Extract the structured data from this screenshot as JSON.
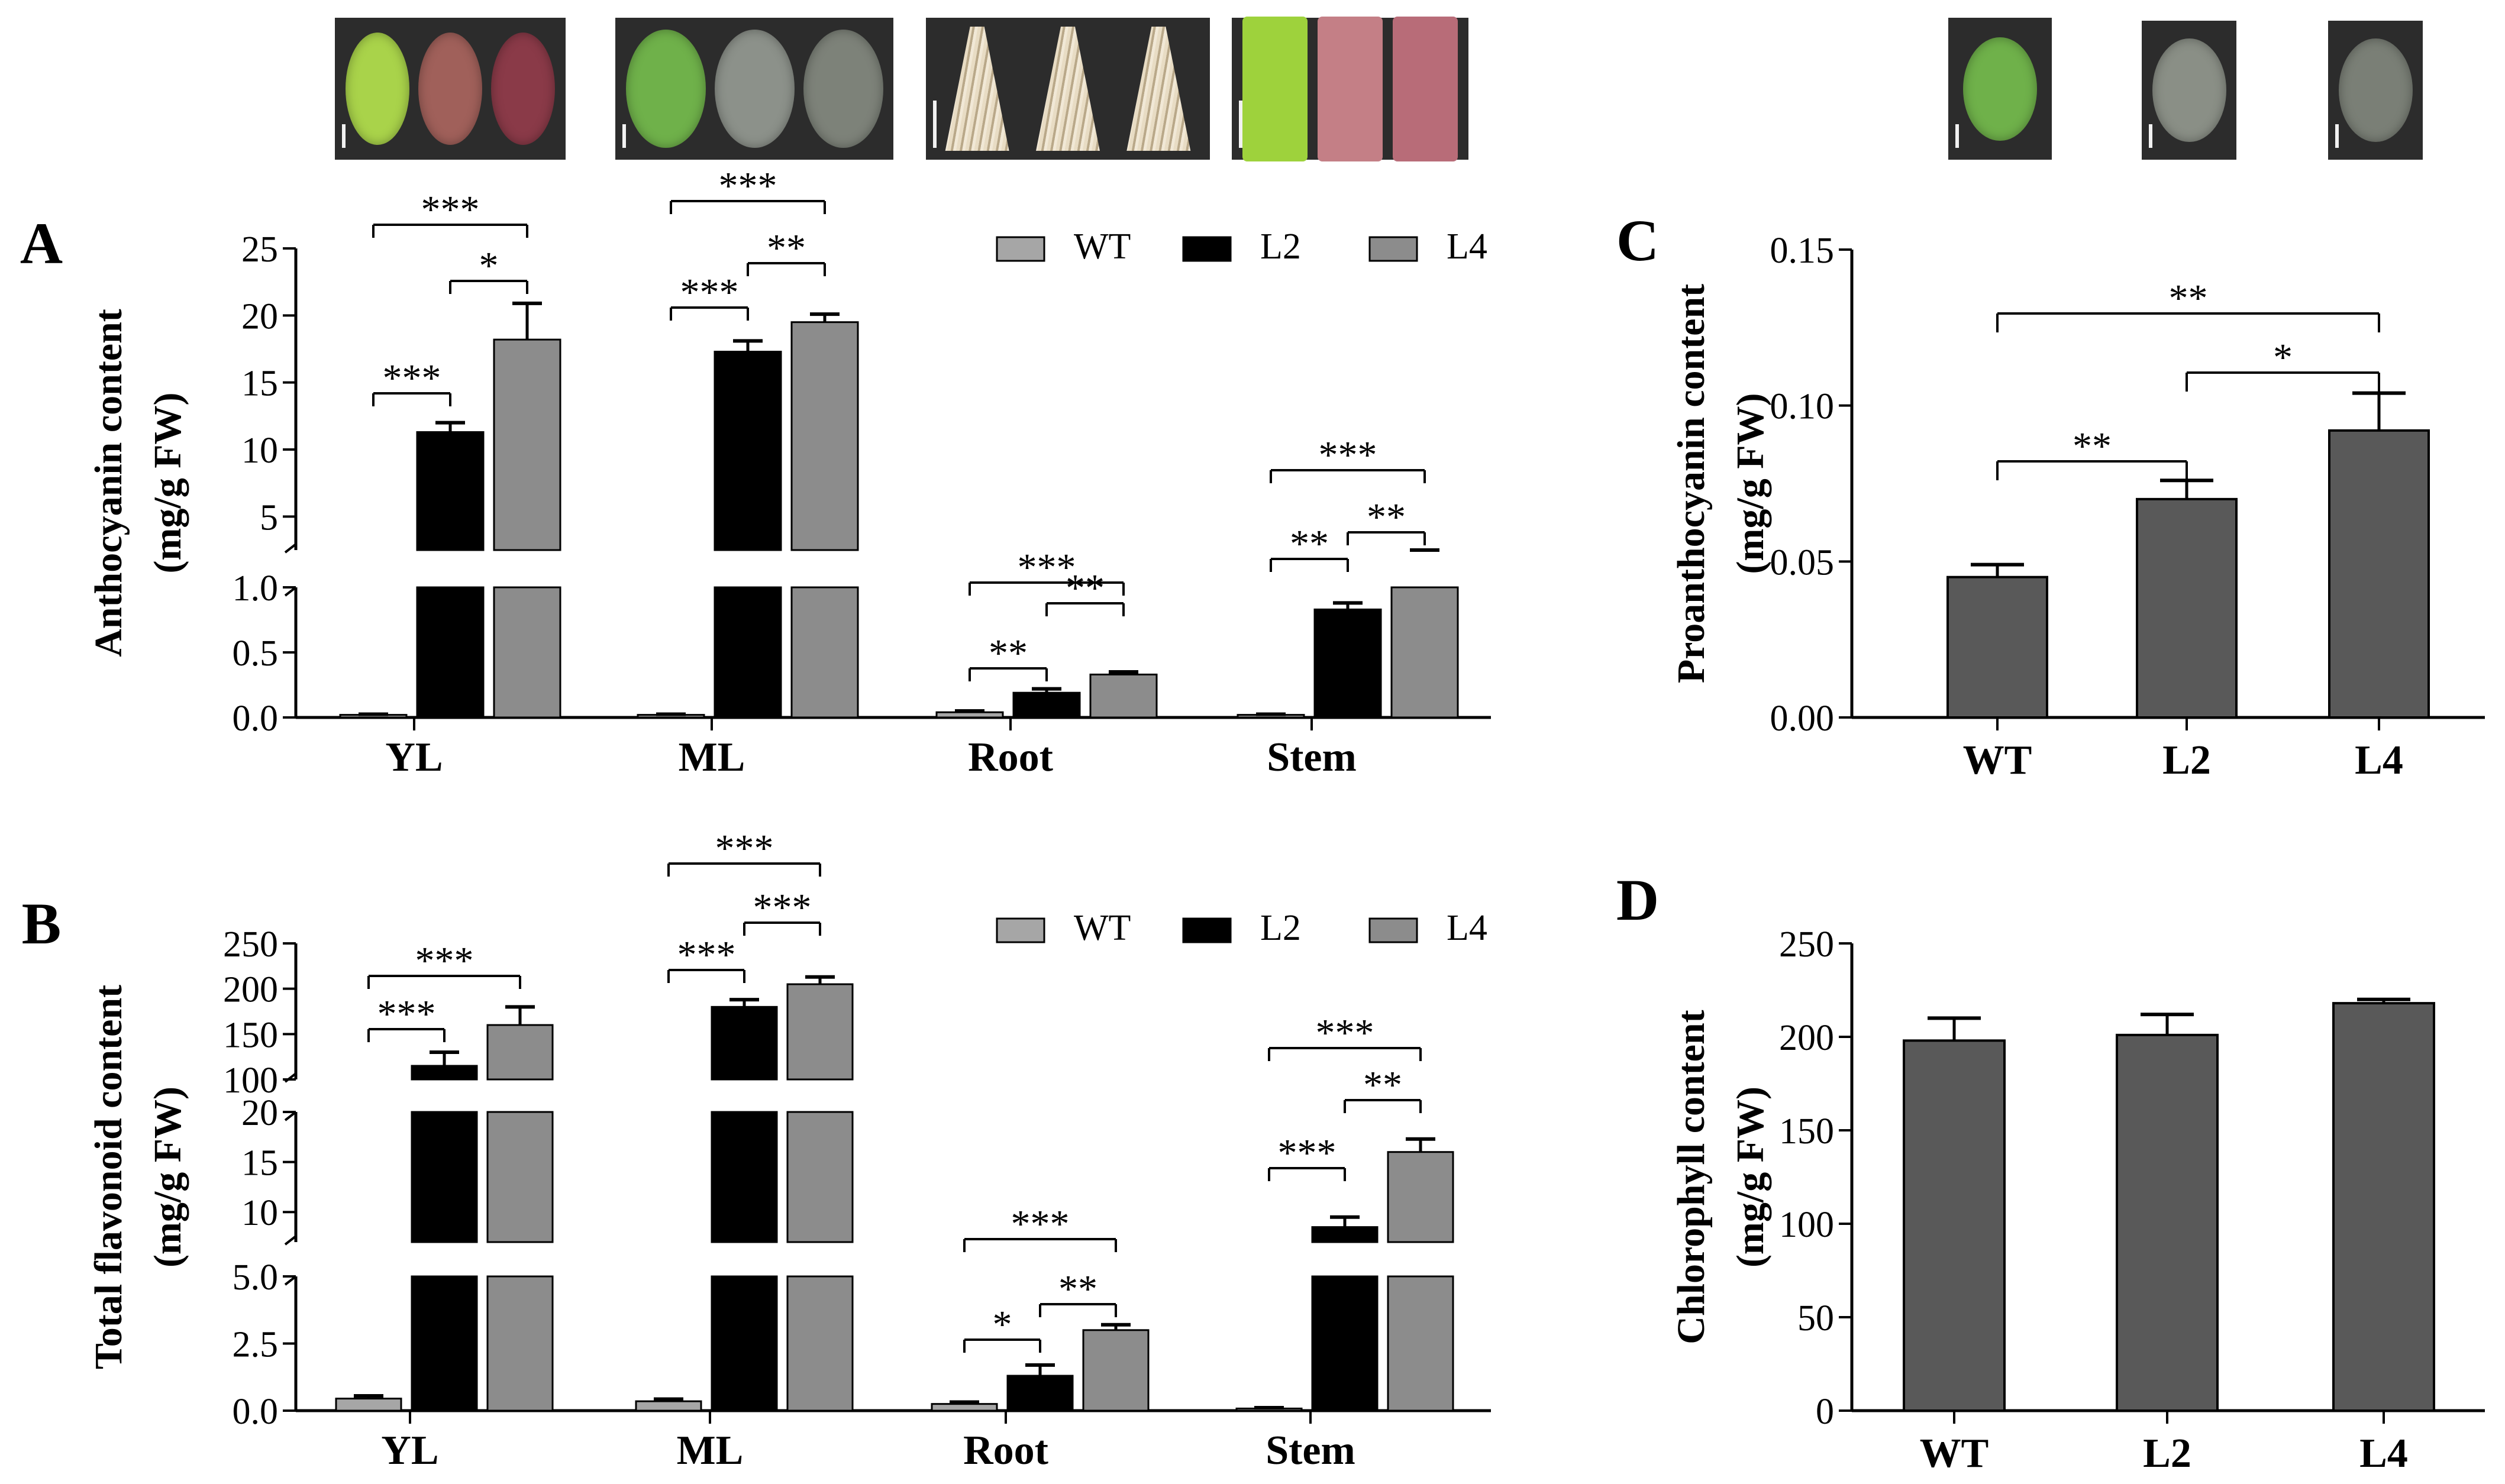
{
  "photos": [
    {
      "group": "YL",
      "leaves": [
        "#a9d34a",
        "#a0605a",
        "#8a3a48"
      ]
    },
    {
      "group": "ML",
      "leaves": [
        "#6fb14a",
        "#8c918a",
        "#7d8279"
      ]
    },
    {
      "group": "Root",
      "leaves": [
        "root",
        "root",
        "root"
      ]
    },
    {
      "group": "Stem",
      "leaves": [
        "#9ed23c",
        "#c47f86",
        "#b86c78"
      ]
    },
    {
      "group": "C",
      "leaves": [
        "#6fb14a"
      ]
    },
    {
      "group": "C2",
      "leaves": [
        "#8a8f86"
      ]
    },
    {
      "group": "C3",
      "leaves": [
        "#7a7f76"
      ]
    }
  ],
  "legend": [
    "WT",
    "L2",
    "L4"
  ],
  "colors": {
    "WT": "#a6a6a6",
    "L2": "#000000",
    "L4": "#8c8c8c",
    "CD": "#595959"
  },
  "chart_data": [
    {
      "panel": "A",
      "type": "bar",
      "broken_axis": true,
      "ylabel": [
        "Anthocyanin content",
        "(mg/g FW)"
      ],
      "categories": [
        "YL",
        "ML",
        "Root",
        "Stem"
      ],
      "series": [
        {
          "name": "WT",
          "values": [
            0.02,
            0.02,
            0.04,
            0.02
          ],
          "errors": [
            0.005,
            0.005,
            0.01,
            0.005
          ]
        },
        {
          "name": "L2",
          "values": [
            11.3,
            17.3,
            0.19,
            0.83
          ],
          "errors": [
            0.7,
            0.8,
            0.03,
            0.05
          ]
        },
        {
          "name": "L4",
          "values": [
            18.2,
            19.5,
            0.33,
            1.6
          ],
          "errors": [
            2.7,
            0.6,
            0.02,
            0.3
          ]
        }
      ],
      "lower_ticks": [
        "0.0",
        "0.5",
        "1.0"
      ],
      "upper_ticks": [
        "5",
        "10",
        "15",
        "20",
        "25"
      ],
      "significance": [
        {
          "cat": 0,
          "from": 1,
          "to": 2,
          "label": "*"
        },
        {
          "cat": 0,
          "from": 0,
          "to": 2,
          "label": "***"
        },
        {
          "cat": 0,
          "from": 0,
          "to": 1,
          "label": "***"
        },
        {
          "cat": 1,
          "from": 1,
          "to": 2,
          "label": "**"
        },
        {
          "cat": 1,
          "from": 0,
          "to": 2,
          "label": "***"
        },
        {
          "cat": 1,
          "from": 0,
          "to": 1,
          "label": "***"
        },
        {
          "cat": 2,
          "from": 1,
          "to": 2,
          "label": "**"
        },
        {
          "cat": 2,
          "from": 0,
          "to": 2,
          "label": "***"
        },
        {
          "cat": 2,
          "from": 0,
          "to": 1,
          "label": "**"
        },
        {
          "cat": 3,
          "from": 1,
          "to": 2,
          "label": "**"
        },
        {
          "cat": 3,
          "from": 0,
          "to": 2,
          "label": "***"
        },
        {
          "cat": 3,
          "from": 0,
          "to": 1,
          "label": "**"
        }
      ]
    },
    {
      "panel": "B",
      "type": "bar",
      "broken_axis": true,
      "ylabel": [
        "Total flavonoid content",
        "(mg/g FW)"
      ],
      "categories": [
        "YL",
        "ML",
        "Root",
        "Stem"
      ],
      "series": [
        {
          "name": "WT",
          "values": [
            0.45,
            0.35,
            0.25,
            0.08
          ],
          "errors": [
            0.1,
            0.08,
            0.07,
            0.03
          ]
        },
        {
          "name": "L2",
          "values": [
            115,
            180,
            1.3,
            8.5
          ],
          "errors": [
            15,
            8,
            0.4,
            1.0
          ]
        },
        {
          "name": "L4",
          "values": [
            160,
            205,
            3.0,
            16.0
          ],
          "errors": [
            20,
            8,
            0.2,
            1.3
          ]
        }
      ],
      "lower_ticks": [
        "0.0",
        "2.5",
        "5.0"
      ],
      "middle_ticks": [
        "10",
        "15",
        "20"
      ],
      "upper_ticks": [
        "100",
        "150",
        "200",
        "250"
      ],
      "significance": [
        {
          "cat": 0,
          "from": 0,
          "to": 2,
          "label": "***"
        },
        {
          "cat": 0,
          "from": 0,
          "to": 1,
          "label": "***"
        },
        {
          "cat": 1,
          "from": 1,
          "to": 2,
          "label": "***"
        },
        {
          "cat": 1,
          "from": 0,
          "to": 2,
          "label": "***"
        },
        {
          "cat": 1,
          "from": 0,
          "to": 1,
          "label": "***"
        },
        {
          "cat": 2,
          "from": 1,
          "to": 2,
          "label": "**"
        },
        {
          "cat": 2,
          "from": 0,
          "to": 2,
          "label": "***"
        },
        {
          "cat": 2,
          "from": 0,
          "to": 1,
          "label": "*"
        },
        {
          "cat": 3,
          "from": 1,
          "to": 2,
          "label": "**"
        },
        {
          "cat": 3,
          "from": 0,
          "to": 2,
          "label": "***"
        },
        {
          "cat": 3,
          "from": 0,
          "to": 1,
          "label": "***"
        }
      ]
    },
    {
      "panel": "C",
      "type": "bar",
      "ylabel": [
        "Proanthocyanin content",
        "(mg/g FW)"
      ],
      "categories": [
        "WT",
        "L2",
        "L4"
      ],
      "values": [
        0.045,
        0.07,
        0.092
      ],
      "errors": [
        0.004,
        0.006,
        0.012
      ],
      "ylim": [
        0,
        0.15
      ],
      "yticks": [
        "0.00",
        "0.05",
        "0.10",
        "0.15"
      ],
      "significance": [
        {
          "from": 0,
          "to": 1,
          "label": "**"
        },
        {
          "from": 1,
          "to": 2,
          "label": "*"
        },
        {
          "from": 0,
          "to": 2,
          "label": "**"
        }
      ]
    },
    {
      "panel": "D",
      "type": "bar",
      "ylabel": [
        "Chlorophyll content",
        "(mg/g FW)"
      ],
      "categories": [
        "WT",
        "L2",
        "L4"
      ],
      "values": [
        198,
        201,
        218
      ],
      "errors": [
        12,
        11,
        2
      ],
      "ylim": [
        0,
        250
      ],
      "yticks": [
        "0",
        "50",
        "100",
        "150",
        "200",
        "250"
      ]
    }
  ]
}
